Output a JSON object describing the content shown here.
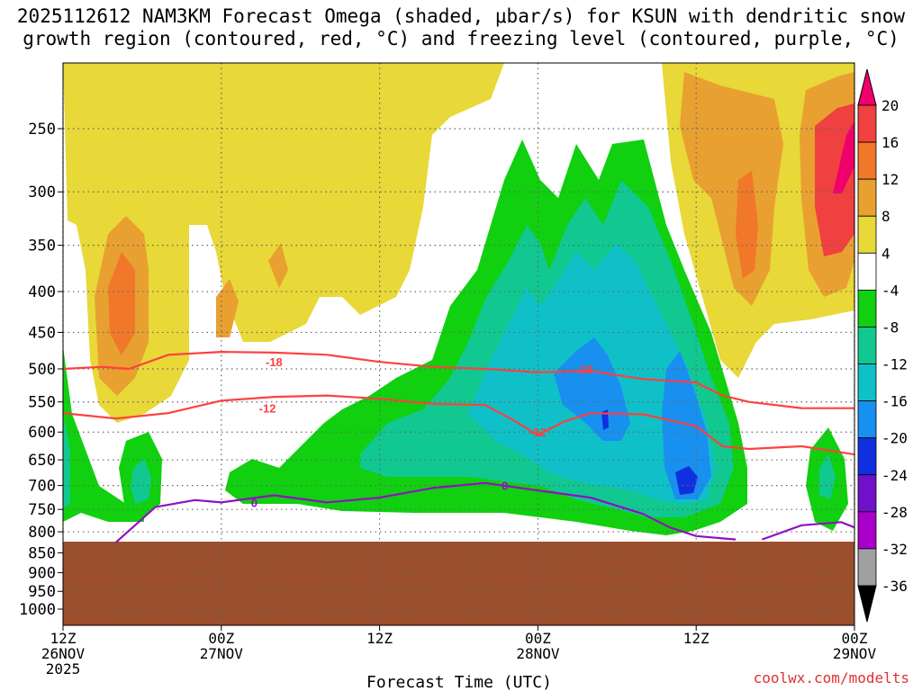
{
  "title_line1": "2025112612 NAM3KM Forecast Omega (shaded, μbar/s) for KSUN with dendritic snow",
  "title_line2": "growth region (contoured, red, °C) and freezing level (contoured, purple, °C)",
  "credit": "coolwx.com/modelts",
  "chart_data": {
    "type": "time-height cross section",
    "xlabel": "Forecast Time (UTC)",
    "x_ticks": [
      {
        "hour": 0,
        "l1": "12Z",
        "l2": "26NOV",
        "l3": "2025"
      },
      {
        "hour": 12,
        "l1": "00Z",
        "l2": "27NOV",
        "l3": ""
      },
      {
        "hour": 24,
        "l1": "12Z",
        "l2": "",
        "l3": ""
      },
      {
        "hour": 36,
        "l1": "00Z",
        "l2": "28NOV",
        "l3": ""
      },
      {
        "hour": 48,
        "l1": "12Z",
        "l2": "",
        "l3": ""
      },
      {
        "hour": 60,
        "l1": "00Z",
        "l2": "29NOV",
        "l3": ""
      }
    ],
    "x_range_hours": [
      0,
      60
    ],
    "y_ticks_hpa": [
      250,
      300,
      350,
      400,
      450,
      500,
      550,
      600,
      650,
      700,
      750,
      800,
      850,
      900,
      950,
      1000
    ],
    "y_range_hpa": [
      200,
      1050
    ],
    "terrain_top_hpa": 825,
    "colorbar": {
      "labels": [
        "20",
        "16",
        "12",
        "8",
        "4",
        "-4",
        "-8",
        "-12",
        "-16",
        "-20",
        "-24",
        "-28",
        "-32",
        "-36"
      ],
      "colors": [
        "#f0006a",
        "#f04040",
        "#f07828",
        "#e8a030",
        "#e8d838",
        "#ffffff",
        "#10d010",
        "#10c890",
        "#10c0c8",
        "#1890f0",
        "#1030e0",
        "#7010c8",
        "#a800c8",
        "#a0a0a0",
        "#000000"
      ]
    },
    "isotherm_labels": [
      {
        "text": "-18",
        "color": "#ff4040",
        "hour": 16,
        "hpa": 490
      },
      {
        "text": "-12",
        "color": "#ff4040",
        "hour": 15.5,
        "hpa": 560
      },
      {
        "text": "-18",
        "color": "#ff4040",
        "hour": 39.5,
        "hpa": 500
      },
      {
        "text": "-12",
        "color": "#ff4040",
        "hour": 36,
        "hpa": 600
      },
      {
        "text": "0",
        "color": "#9010c0",
        "hour": 14.5,
        "hpa": 735
      },
      {
        "text": "0",
        "color": "#9010c0",
        "hour": 33.5,
        "hpa": 700
      }
    ],
    "series": [
      {
        "name": "-18C isotherm (DGZ top)",
        "color": "#ff4040",
        "x": [
          0,
          3,
          5,
          8,
          12,
          16,
          20,
          24,
          28,
          32,
          36,
          40,
          44,
          48,
          50,
          52,
          56,
          60
        ],
        "hpa": [
          500,
          497,
          500,
          480,
          476,
          477,
          480,
          490,
          497,
          500,
          505,
          503,
          515,
          520,
          540,
          550,
          560,
          560
        ]
      },
      {
        "name": "-12C isotherm (DGZ bottom)",
        "color": "#ff4040",
        "x": [
          0,
          4,
          8,
          12,
          16,
          20,
          24,
          28,
          32,
          34,
          36,
          38,
          40,
          44,
          48,
          50,
          52,
          56,
          60
        ],
        "hpa": [
          568,
          577,
          568,
          548,
          542,
          540,
          545,
          553,
          555,
          578,
          605,
          582,
          568,
          570,
          590,
          625,
          630,
          625,
          640
        ]
      },
      {
        "name": "0C freezing level",
        "color": "#9010c0",
        "x": [
          4,
          7,
          10,
          12,
          16,
          20,
          24,
          28,
          32,
          36,
          40,
          44,
          46,
          48,
          51
        ],
        "hpa": [
          825,
          745,
          730,
          735,
          720,
          735,
          725,
          705,
          695,
          710,
          725,
          760,
          790,
          810,
          818
        ]
      },
      {
        "name": "0C freezing level (east segment)",
        "color": "#9010c0",
        "x": [
          53,
          56,
          59,
          60
        ],
        "hpa": [
          818,
          785,
          778,
          790
        ]
      }
    ]
  }
}
